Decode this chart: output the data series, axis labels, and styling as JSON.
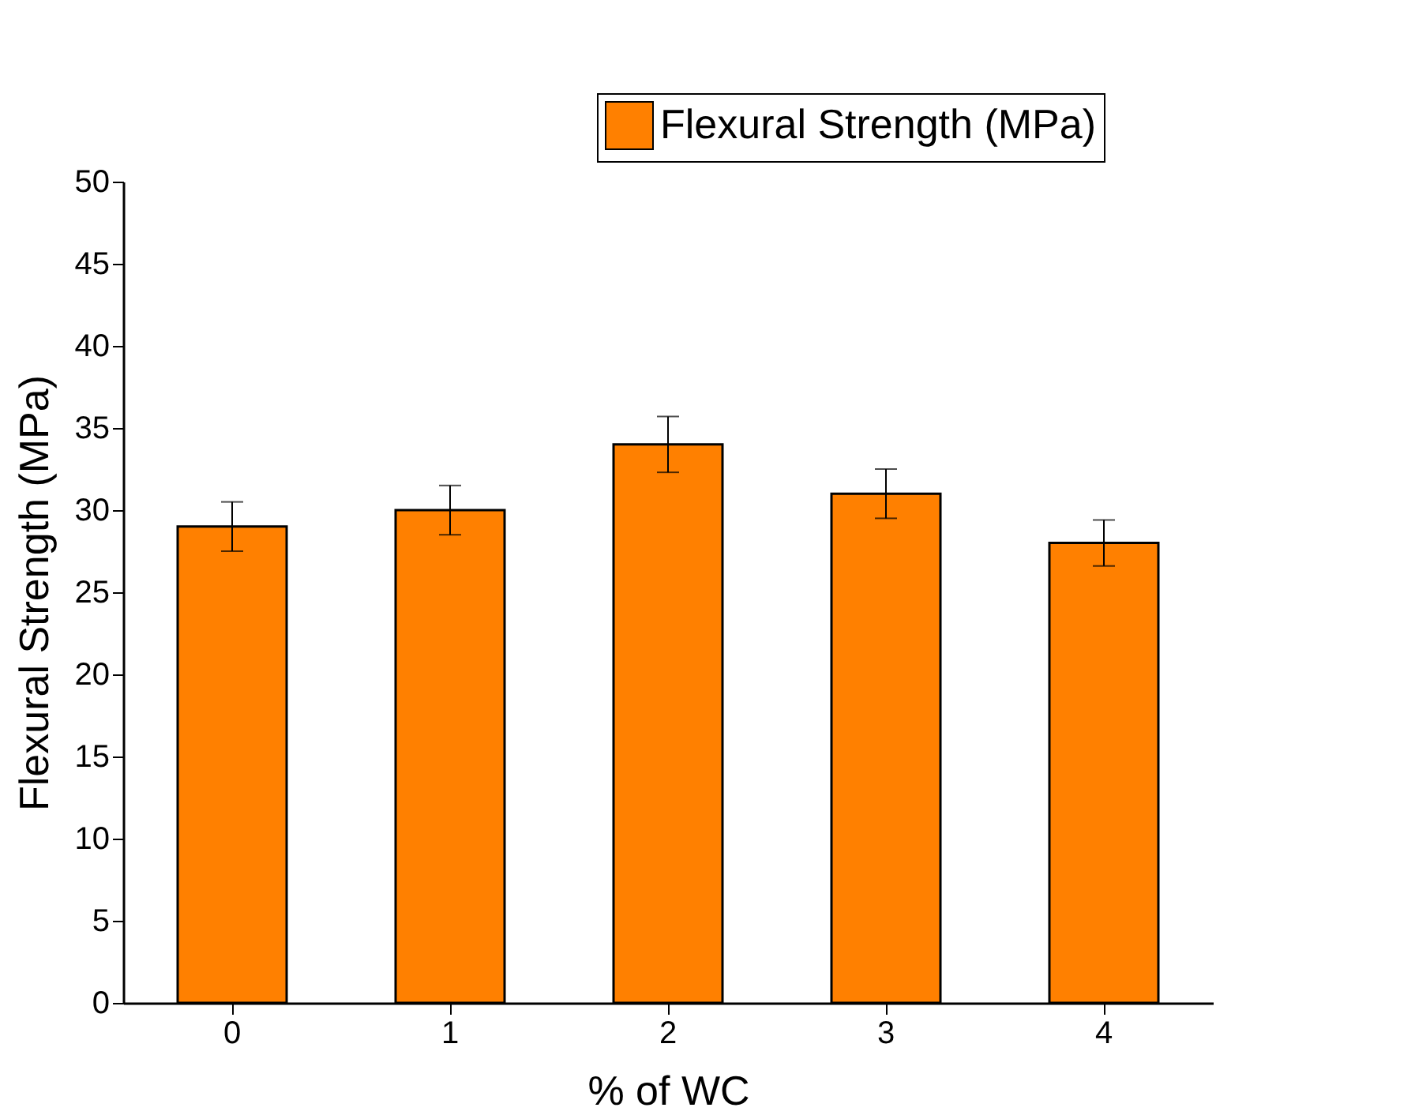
{
  "chart_data": {
    "type": "bar",
    "xlabel": "% of WC",
    "ylabel": "Flexural Strength (MPa)",
    "categories": [
      "0",
      "1",
      "2",
      "3",
      "4"
    ],
    "series": [
      {
        "name": "Flexural Strength (MPa)",
        "color": "#ff8000",
        "values": [
          29,
          30,
          34,
          31,
          28
        ],
        "errors": [
          1.5,
          1.5,
          1.7,
          1.5,
          1.4
        ]
      }
    ],
    "ylim": [
      0,
      50
    ],
    "yticks": [
      0,
      5,
      10,
      15,
      20,
      25,
      30,
      35,
      40,
      45,
      50
    ],
    "grid": false,
    "legend": "top right"
  }
}
